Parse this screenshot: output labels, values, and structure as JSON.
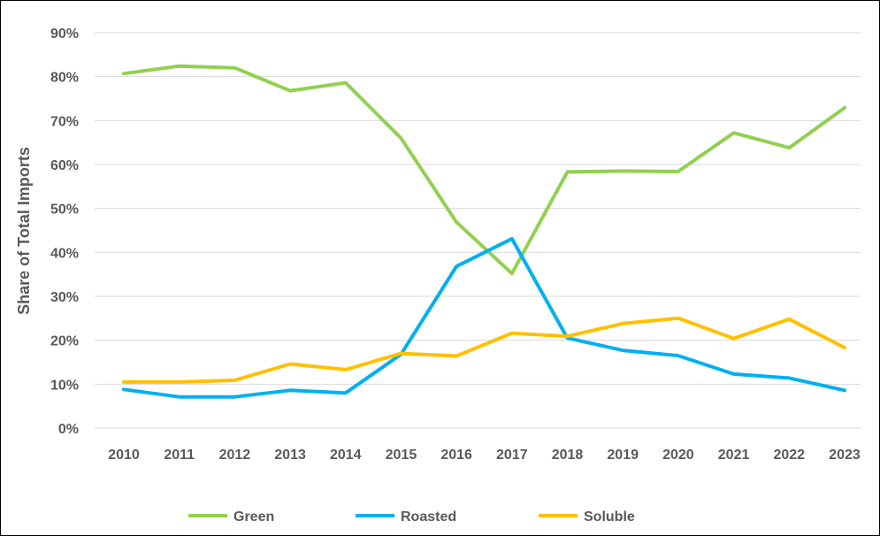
{
  "chart_data": {
    "type": "line",
    "title": "",
    "xlabel": "",
    "ylabel": "Share of Total Imports",
    "ylim": [
      0,
      90
    ],
    "y_ticks": [
      "0%",
      "10%",
      "20%",
      "30%",
      "40%",
      "50%",
      "60%",
      "70%",
      "80%",
      "90%"
    ],
    "y_tick_values": [
      0,
      10,
      20,
      30,
      40,
      50,
      60,
      70,
      80,
      90
    ],
    "grid": true,
    "legend_position": "bottom",
    "categories": [
      "2010",
      "2011",
      "2012",
      "2013",
      "2014",
      "2015",
      "2016",
      "2017",
      "2018",
      "2019",
      "2020",
      "2021",
      "2022",
      "2023"
    ],
    "series": [
      {
        "name": "Green",
        "color": "#92d050",
        "values": [
          80.7,
          82.4,
          82.0,
          76.8,
          78.6,
          66.0,
          46.9,
          35.2,
          58.3,
          58.5,
          58.4,
          67.2,
          63.8,
          72.9
        ]
      },
      {
        "name": "Roasted",
        "color": "#00b0f0",
        "values": [
          8.8,
          7.1,
          7.1,
          8.6,
          8.0,
          16.8,
          36.8,
          43.1,
          20.5,
          17.7,
          16.5,
          12.3,
          11.4,
          8.6
        ]
      },
      {
        "name": "Soluble",
        "color": "#ffc000",
        "values": [
          10.5,
          10.5,
          10.9,
          14.6,
          13.3,
          17.0,
          16.4,
          21.6,
          20.9,
          23.8,
          25.0,
          20.4,
          24.8,
          18.3
        ]
      }
    ]
  }
}
